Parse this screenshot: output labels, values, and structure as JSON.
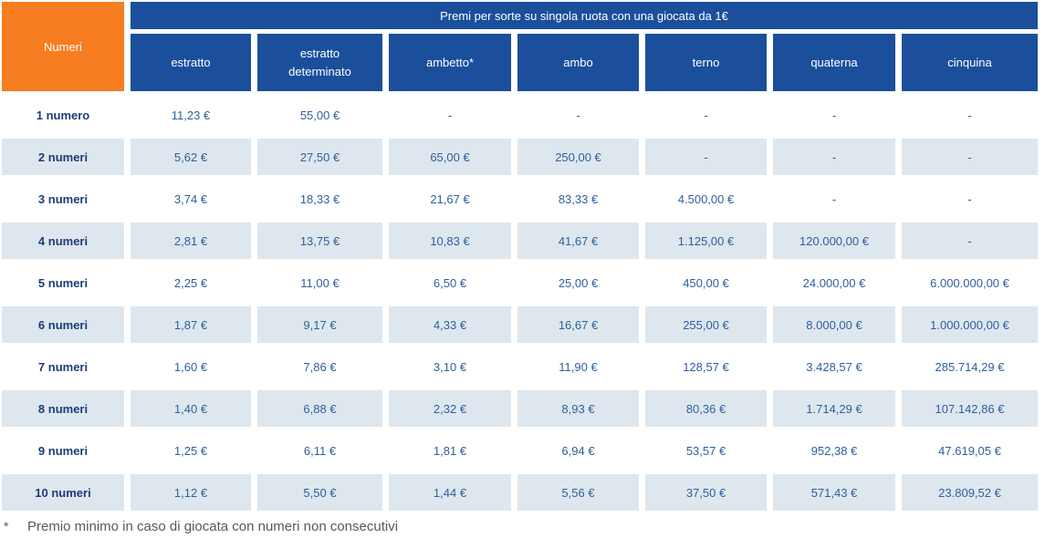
{
  "page": {
    "title": "Premi per sorte su singola ruota con una giocata da 1€",
    "numeri_header": "Numeri"
  },
  "colors": {
    "header_blue": "#1b4f9c",
    "orange": "#f67d20",
    "row_shade": "#dee7ee",
    "label_text": "#1e3c78",
    "value_text": "#2f5f9e",
    "footnote_text": "#58595b"
  },
  "table": {
    "columns": [
      "estratto",
      "estratto determinato",
      "ambetto*",
      "ambo",
      "terno",
      "quaterna",
      "cinquina"
    ],
    "rows": [
      {
        "label": "1 numero",
        "values": [
          "11,23 €",
          "55,00 €",
          "-",
          "-",
          "-",
          "-",
          "-"
        ]
      },
      {
        "label": "2 numeri",
        "values": [
          "5,62 €",
          "27,50 €",
          "65,00 €",
          "250,00 €",
          "-",
          "-",
          "-"
        ]
      },
      {
        "label": "3 numeri",
        "values": [
          "3,74 €",
          "18,33 €",
          "21,67 €",
          "83,33 €",
          "4.500,00 €",
          "-",
          "-"
        ]
      },
      {
        "label": "4 numeri",
        "values": [
          "2,81 €",
          "13,75 €",
          "10,83 €",
          "41,67 €",
          "1.125,00 €",
          "120.000,00 €",
          "-"
        ]
      },
      {
        "label": "5 numeri",
        "values": [
          "2,25 €",
          "11,00 €",
          "6,50 €",
          "25,00 €",
          "450,00 €",
          "24.000,00 €",
          "6.000.000,00 €"
        ]
      },
      {
        "label": "6 numeri",
        "values": [
          "1,87 €",
          "9,17 €",
          "4,33 €",
          "16,67 €",
          "255,00 €",
          "8.000,00 €",
          "1.000.000,00 €"
        ]
      },
      {
        "label": "7 numeri",
        "values": [
          "1,60 €",
          "7,86 €",
          "3,10 €",
          "11,90 €",
          "128,57 €",
          "3.428,57 €",
          "285.714,29 €"
        ]
      },
      {
        "label": "8 numeri",
        "values": [
          "1,40 €",
          "6,88 €",
          "2,32 €",
          "8,93 €",
          "80,36 €",
          "1.714,29 €",
          "107.142,86 €"
        ]
      },
      {
        "label": "9 numeri",
        "values": [
          "1,25 €",
          "6,11 €",
          "1,81 €",
          "6,94 €",
          "53,57 €",
          "952,38 €",
          "47.619,05 €"
        ]
      },
      {
        "label": "10 numeri",
        "values": [
          "1,12 €",
          "5,50 €",
          "1,44 €",
          "5,56 €",
          "37,50 €",
          "571,43 €",
          "23.809,52 €"
        ]
      }
    ]
  },
  "footnote": {
    "marker": "*",
    "text": "Premio minimo in caso di giocata con numeri non consecutivi"
  }
}
